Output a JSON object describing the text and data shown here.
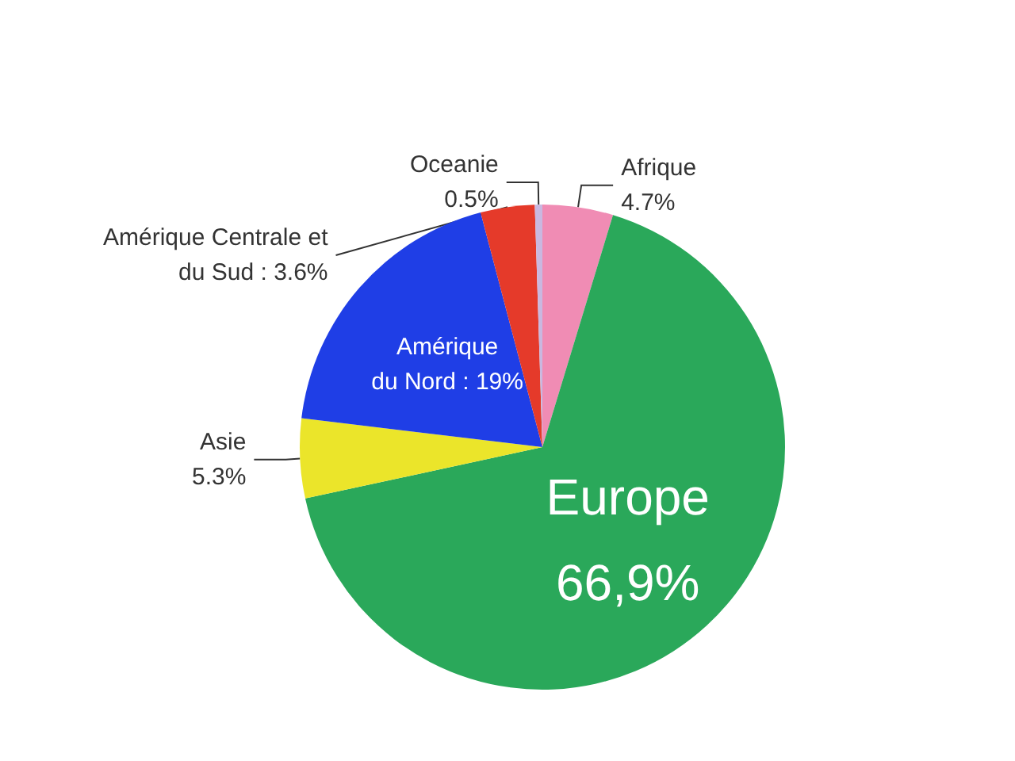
{
  "chart_data": {
    "type": "pie",
    "categories": [
      "Afrique",
      "Europe",
      "Asie",
      "Amérique du Nord",
      "Amérique Centrale et du Sud",
      "Oceanie"
    ],
    "values": [
      4.7,
      66.9,
      5.3,
      19,
      3.6,
      0.5
    ],
    "colors": [
      "#f08cb4",
      "#2aa85a",
      "#ebe52a",
      "#1f3ee6",
      "#e53a2a",
      "#c9b8e0"
    ],
    "value_labels": [
      "4.7%",
      "66,9%",
      "5.3%",
      "19%",
      "3.6%",
      "0.5%"
    ]
  }
}
